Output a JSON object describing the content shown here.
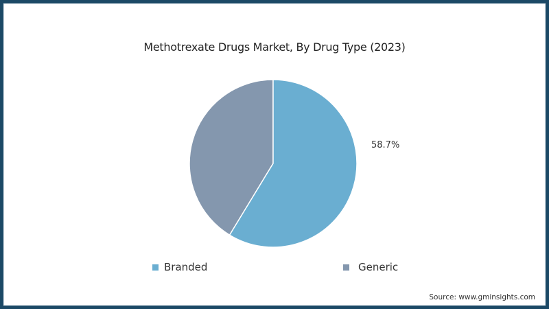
{
  "chart_data": {
    "type": "pie",
    "title": "Methotrexate Drugs Market, By Drug Type (2023)",
    "categories": [
      "Branded",
      "Generic"
    ],
    "values": [
      58.7,
      41.3
    ],
    "colors": [
      "#6aaed1",
      "#8497ae"
    ],
    "data_labels": [
      {
        "category": "Branded",
        "text": "58.7%"
      }
    ],
    "legend": {
      "position": "bottom",
      "entries": [
        "Branded",
        "Generic"
      ]
    },
    "start_angle": "12 o'clock, clockwise"
  },
  "chart": {
    "title": "Methotrexate Drugs Market, By Drug Type (2023)",
    "branded_label": "58.7%",
    "legend": {
      "branded": "Branded",
      "generic": "Generic"
    },
    "source": "Source: www.gminsights.com"
  },
  "colors": {
    "frame": "#1c4966",
    "branded": "#6aaed1",
    "generic": "#8497ae"
  }
}
